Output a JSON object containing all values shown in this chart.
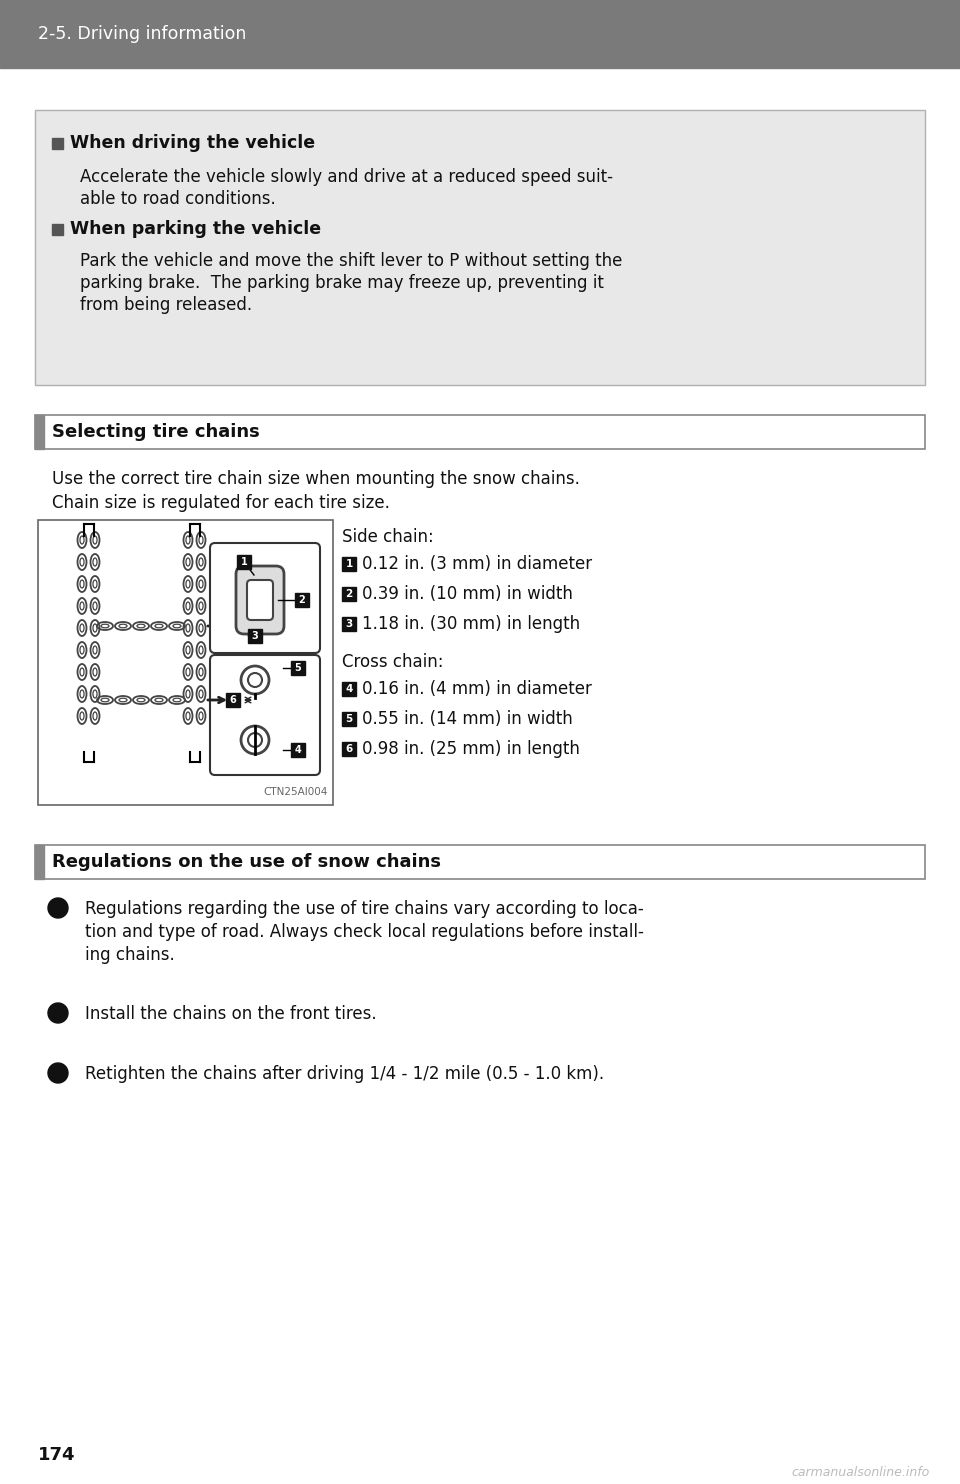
{
  "page_bg": "#ffffff",
  "header_bg": "#7a7a7a",
  "header_text": "2-5. Driving information",
  "header_text_color": "#ffffff",
  "info_box_bg": "#e8e8e8",
  "info_box_border": "#bbbbbb",
  "selecting_header": "Selecting tire chains",
  "selecting_intro1": "Use the correct tire chain size when mounting the snow chains.",
  "selecting_intro2": "Chain size is regulated for each tire size.",
  "side_chain_title": "Side chain:",
  "side_chain_items": [
    "0.12 in. (3 mm) in diameter",
    "0.39 in. (10 mm) in width",
    "1.18 in. (30 mm) in length"
  ],
  "cross_chain_title": "Cross chain:",
  "cross_chain_items": [
    "0.16 in. (4 mm) in diameter",
    "0.55 in. (14 mm) in width",
    "0.98 in. (25 mm) in length"
  ],
  "regulations_header": "Regulations on the use of snow chains",
  "regulations_items": [
    "Regulations regarding the use of tire chains vary according to loca-\ntion and type of road. Always check local regulations before install-\ning chains.",
    "Install the chains on the front tires.",
    "Retighten the chains after driving 1/4 - 1/2 mile (0.5 - 1.0 km)."
  ],
  "page_number": "174",
  "watermark": "carmanualsonline.info"
}
